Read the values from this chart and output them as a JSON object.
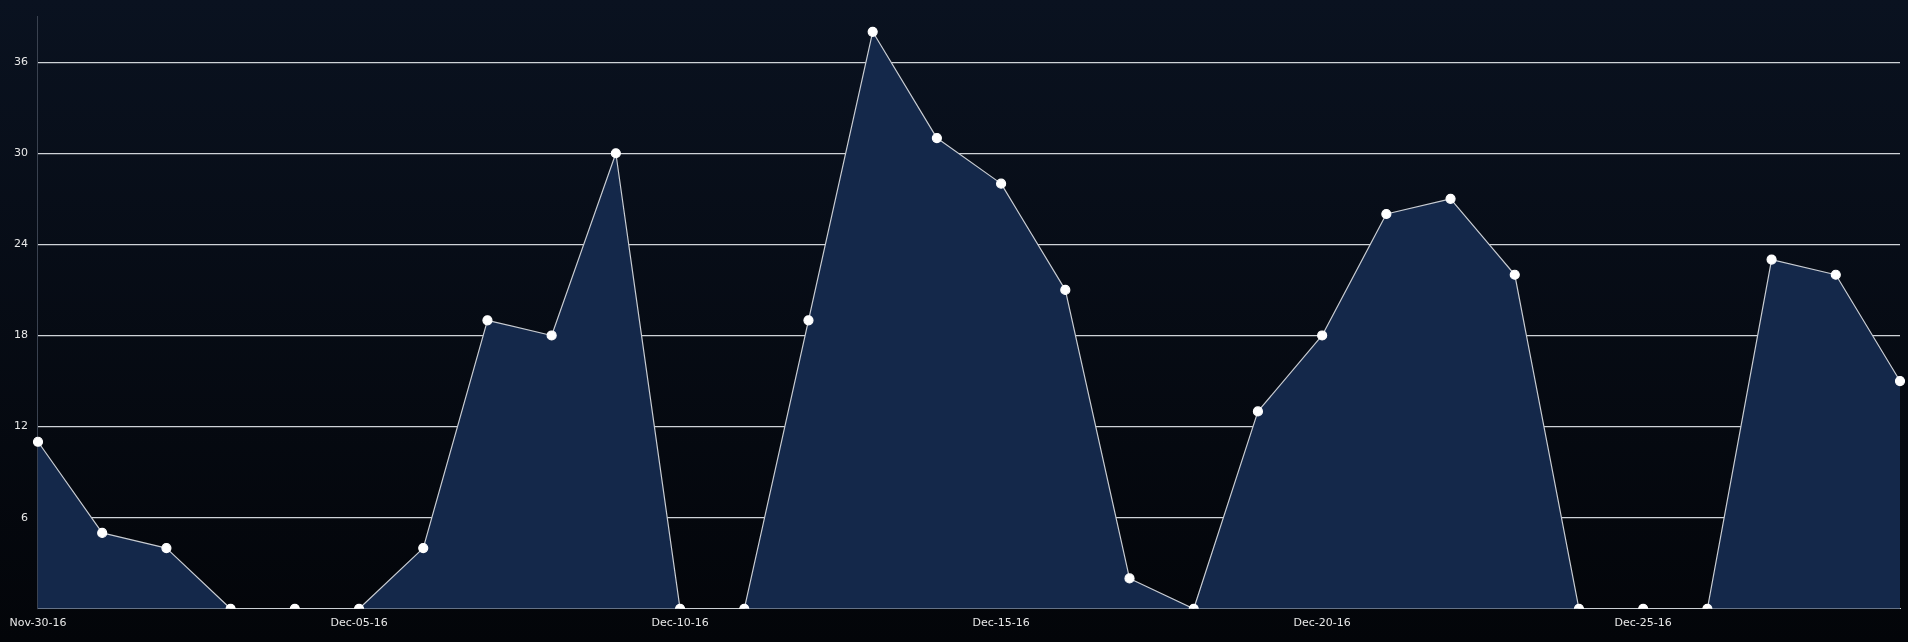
{
  "chart_data": {
    "type": "area",
    "categories": [
      "Nov-30-16",
      null,
      null,
      null,
      null,
      "Dec-05-16",
      null,
      null,
      null,
      null,
      "Dec-10-16",
      null,
      null,
      null,
      null,
      "Dec-15-16",
      null,
      null,
      null,
      null,
      "Dec-20-16",
      null,
      null,
      null,
      null,
      "Dec-25-16",
      null,
      null,
      null,
      null
    ],
    "series": [
      {
        "color": "#14284a",
        "values": [
          11,
          5,
          4,
          0,
          0,
          0,
          4,
          19,
          18,
          30,
          0,
          0,
          19,
          38,
          31,
          28,
          21,
          2,
          0,
          13,
          18,
          26,
          27,
          22,
          0,
          0,
          0,
          23,
          22,
          15
        ]
      }
    ],
    "ylim": [
      0,
      39
    ],
    "yticks": [
      6,
      12,
      18,
      24,
      30,
      36
    ],
    "grid": "y",
    "marker": "circle",
    "legend": false
  }
}
